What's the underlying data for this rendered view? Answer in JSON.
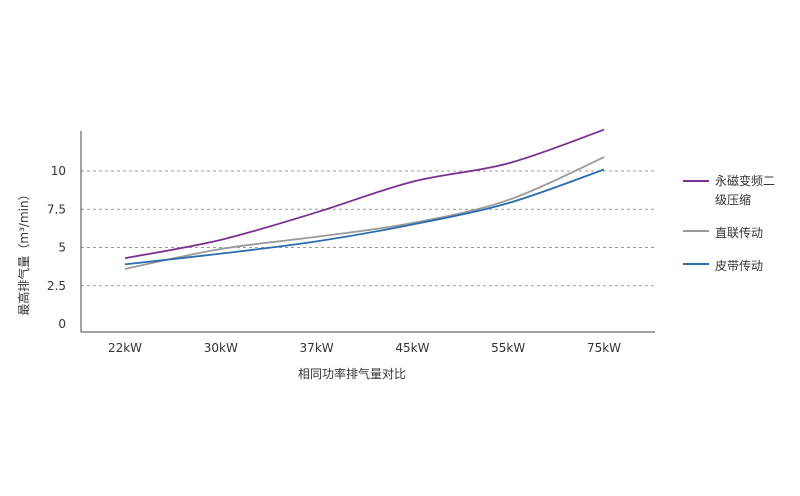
{
  "chart_data": {
    "type": "line",
    "categories": [
      "22kW",
      "30kW",
      "37kW",
      "45kW",
      "55kW",
      "75kW"
    ],
    "xlabel": "相同功率排气量对比",
    "ylabel": "最高排气量（m³/min）",
    "yticks": [
      "0",
      "2.5",
      "5",
      "7.5",
      "10"
    ],
    "ylim": [
      0,
      12.5
    ],
    "grid": "horizontal dashed",
    "legend_position": "right",
    "series": [
      {
        "name": "永磁变频二级压缩",
        "color": "#7b2f91",
        "values": [
          4.3,
          5.5,
          7.3,
          9.3,
          10.5,
          12.7
        ]
      },
      {
        "name": "直联传动",
        "color": "#9a9a9a",
        "values": [
          3.6,
          4.9,
          5.7,
          6.6,
          8.1,
          10.9
        ]
      },
      {
        "name": "皮带传动",
        "color": "#2b6cb0",
        "values": [
          3.9,
          4.6,
          5.4,
          6.5,
          7.9,
          10.1
        ]
      }
    ]
  }
}
